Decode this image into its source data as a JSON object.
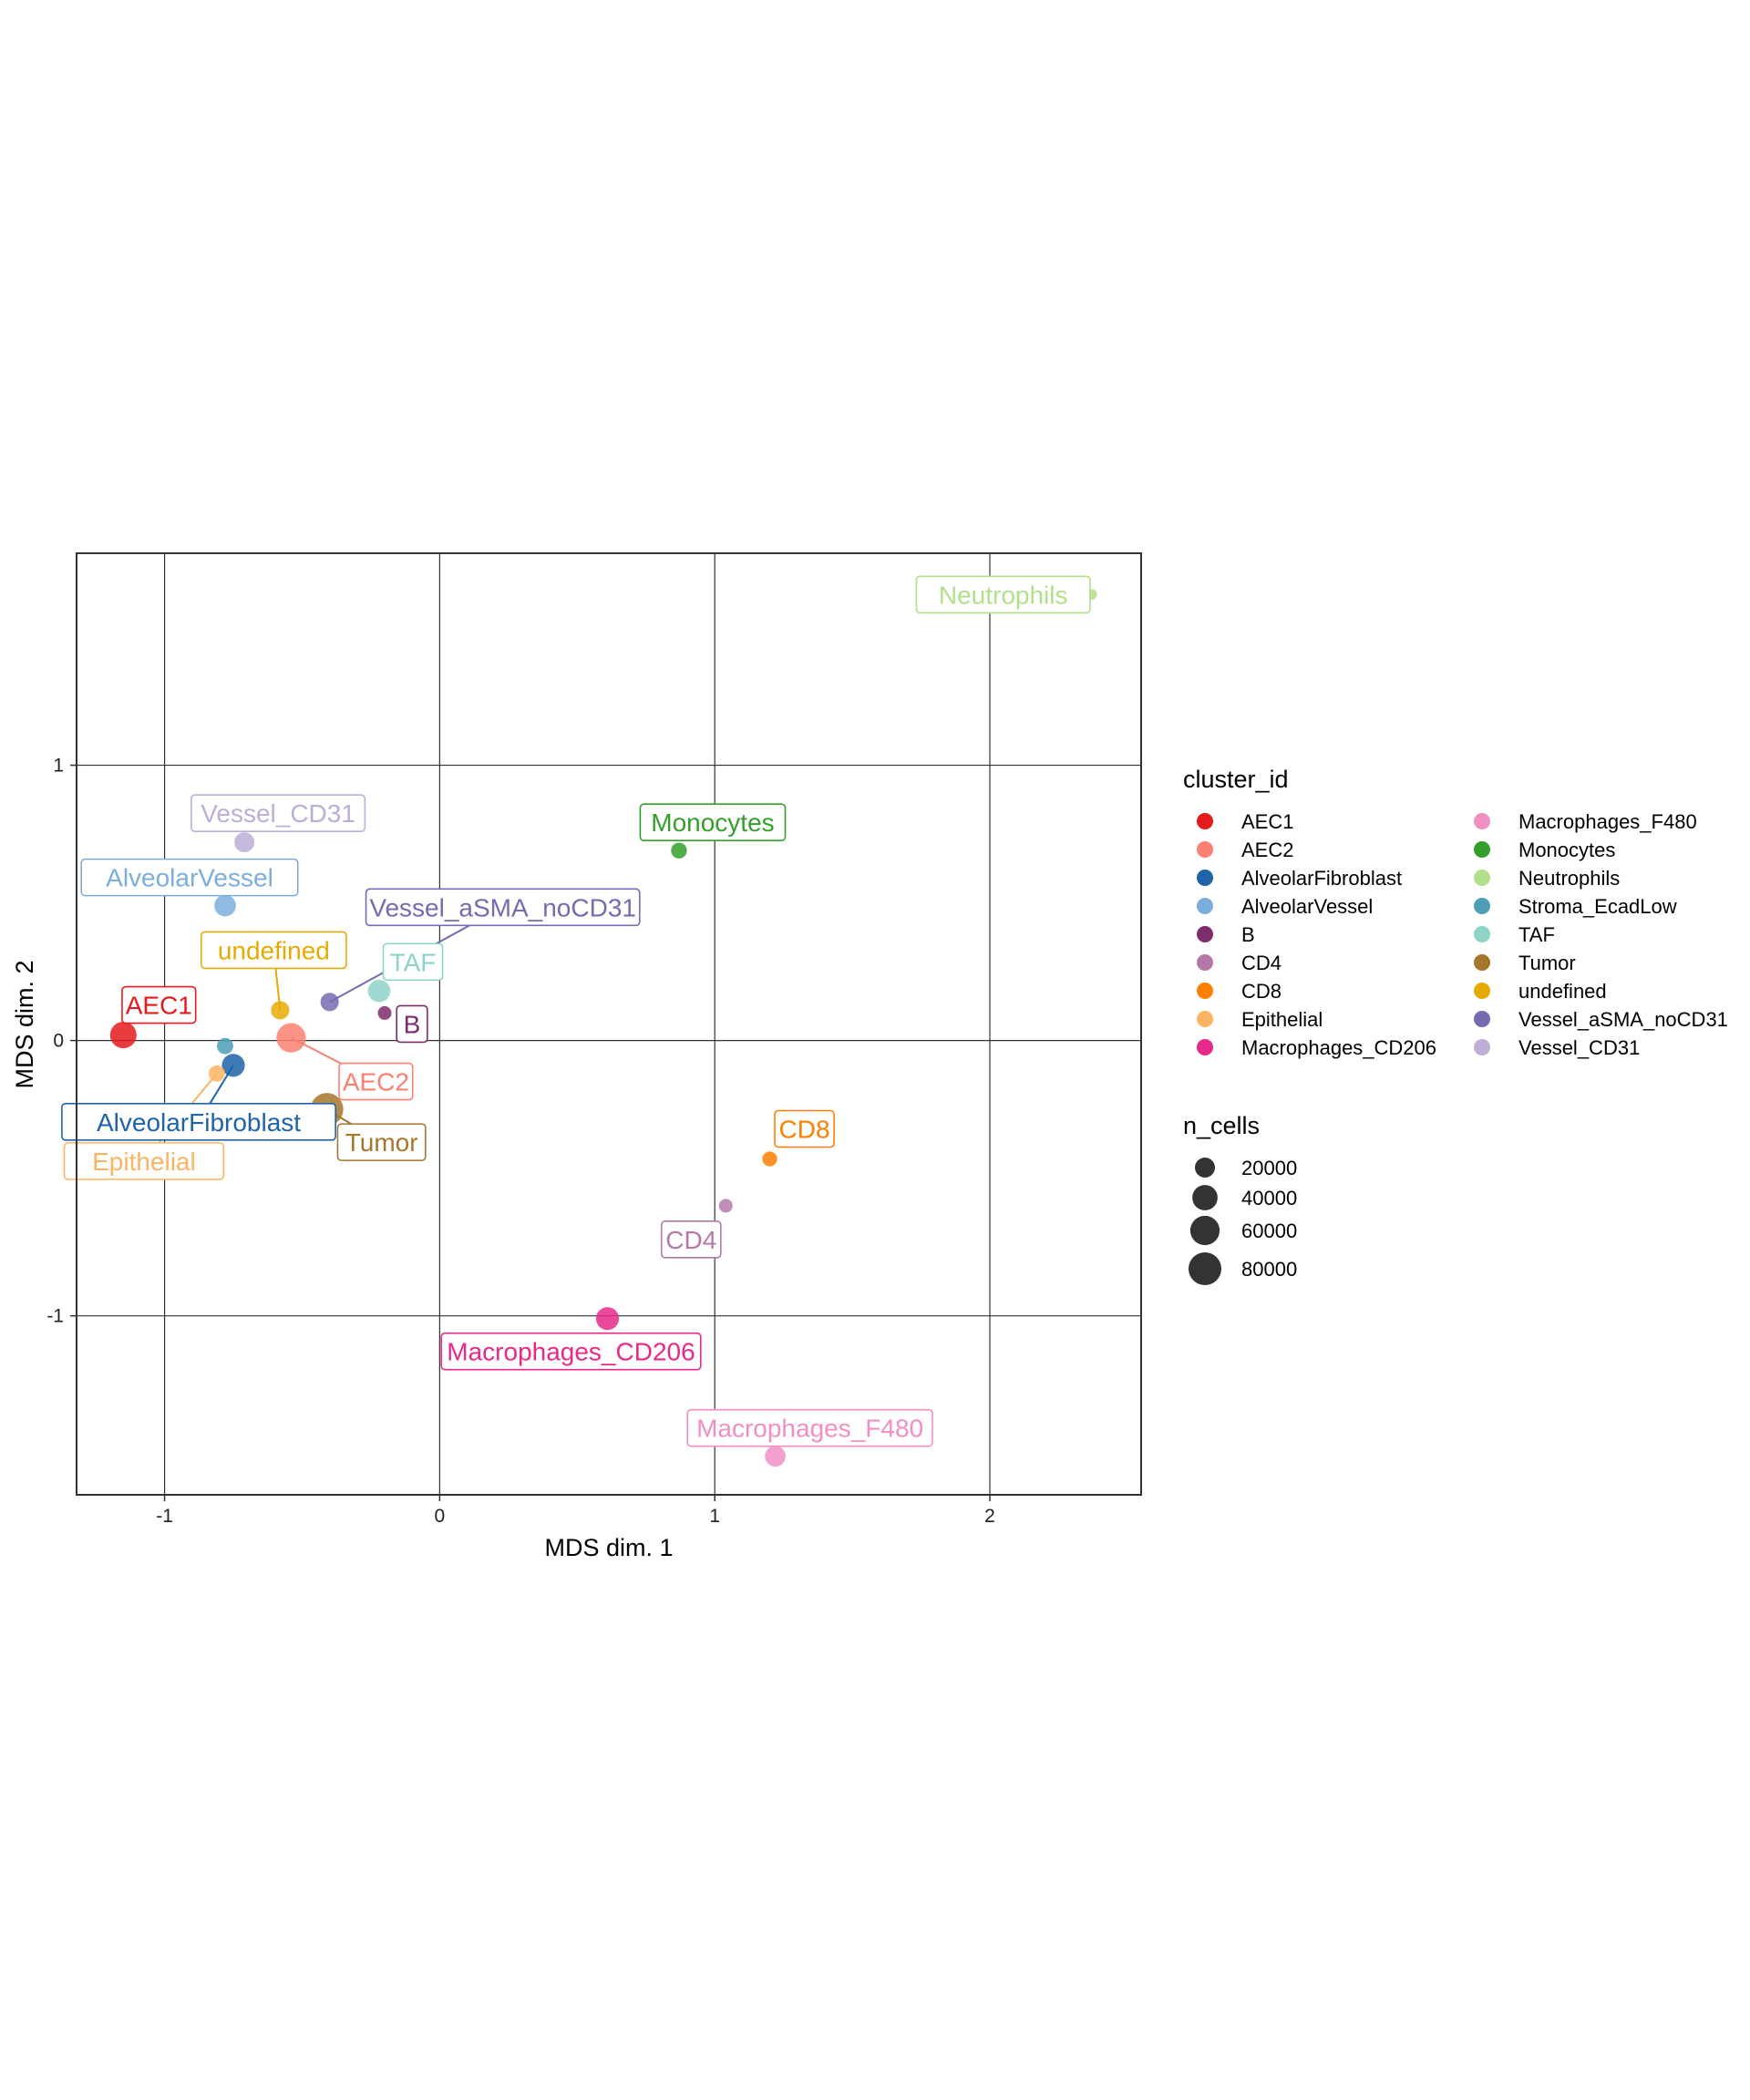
{
  "chart_data": {
    "type": "scatter",
    "title": "",
    "xlabel": "MDS dim. 1",
    "ylabel": "MDS dim. 2",
    "xlim": [
      -1.32,
      2.55
    ],
    "ylim": [
      -1.65,
      1.77
    ],
    "x_ticks": [
      -1,
      0,
      1,
      2
    ],
    "y_ticks": [
      -1,
      0,
      1
    ],
    "x_tick_labels": [
      "-1",
      "0",
      "1",
      "2"
    ],
    "y_tick_labels": [
      "-1",
      "0",
      "1"
    ],
    "grid": true,
    "legend_placement": "right",
    "legend_color_title": "cluster_id",
    "legend_size_title": "n_cells",
    "size_legend": [
      {
        "label": "20000",
        "value": 20000
      },
      {
        "label": "40000",
        "value": 40000
      },
      {
        "label": "60000",
        "value": 60000
      },
      {
        "label": "80000",
        "value": 80000
      }
    ],
    "clusters": [
      {
        "name": "AEC1",
        "color": "#E41A1C",
        "x": -1.15,
        "y": 0.02,
        "n_cells": 45000
      },
      {
        "name": "AEC2",
        "color": "#FB8072",
        "x": -0.54,
        "y": 0.01,
        "n_cells": 60000
      },
      {
        "name": "AlveolarFibroblast",
        "color": "#1F63A8",
        "x": -0.75,
        "y": -0.09,
        "n_cells": 30000
      },
      {
        "name": "AlveolarVessel",
        "color": "#7BAEDC",
        "x": -0.78,
        "y": 0.49,
        "n_cells": 25000
      },
      {
        "name": "B",
        "color": "#7D2C6C",
        "x": -0.2,
        "y": 0.1,
        "n_cells": 5000
      },
      {
        "name": "CD4",
        "color": "#B479A8",
        "x": 1.04,
        "y": -0.6,
        "n_cells": 5000
      },
      {
        "name": "CD8",
        "color": "#FF7F00",
        "x": 1.2,
        "y": -0.43,
        "n_cells": 7000
      },
      {
        "name": "Epithelial",
        "color": "#FDB462",
        "x": -0.81,
        "y": -0.12,
        "n_cells": 10000
      },
      {
        "name": "Macrophages_CD206",
        "color": "#E7298A",
        "x": 0.61,
        "y": -1.01,
        "n_cells": 30000
      },
      {
        "name": "Macrophages_F480",
        "color": "#F18FC5",
        "x": 1.22,
        "y": -1.51,
        "n_cells": 22000
      },
      {
        "name": "Monocytes",
        "color": "#33A02C",
        "x": 0.87,
        "y": 0.69,
        "n_cells": 9000
      },
      {
        "name": "Neutrophils",
        "color": "#B2DF8A",
        "x": 2.37,
        "y": 1.62,
        "n_cells": 1500
      },
      {
        "name": "Stroma_EcadLow",
        "color": "#4C9DB5",
        "x": -0.78,
        "y": -0.02,
        "n_cells": 10000
      },
      {
        "name": "TAF",
        "color": "#8DD3C7",
        "x": -0.22,
        "y": 0.18,
        "n_cells": 28000
      },
      {
        "name": "Tumor",
        "color": "#A6762A",
        "x": -0.41,
        "y": -0.25,
        "n_cells": 80000
      },
      {
        "name": "undefined",
        "color": "#E6AB02",
        "x": -0.58,
        "y": 0.11,
        "n_cells": 15000
      },
      {
        "name": "Vessel_aSMA_noCD31",
        "color": "#756BB1",
        "x": -0.4,
        "y": 0.14,
        "n_cells": 15000
      },
      {
        "name": "Vessel_CD31",
        "color": "#BCAED6",
        "x": -0.71,
        "y": 0.72,
        "n_cells": 20000
      }
    ]
  }
}
